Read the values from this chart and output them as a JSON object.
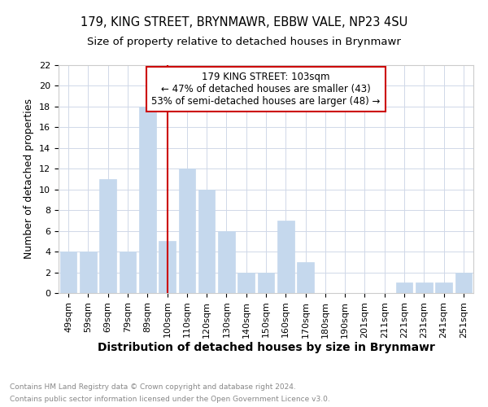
{
  "title_line1": "179, KING STREET, BRYNMAWR, EBBW VALE, NP23 4SU",
  "title_line2": "Size of property relative to detached houses in Brynmawr",
  "xlabel": "Distribution of detached houses by size in Brynmawr",
  "ylabel": "Number of detached properties",
  "bins": [
    "49sqm",
    "59sqm",
    "69sqm",
    "79sqm",
    "89sqm",
    "100sqm",
    "110sqm",
    "120sqm",
    "130sqm",
    "140sqm",
    "150sqm",
    "160sqm",
    "170sqm",
    "180sqm",
    "190sqm",
    "201sqm",
    "211sqm",
    "221sqm",
    "231sqm",
    "241sqm",
    "251sqm"
  ],
  "values": [
    4,
    4,
    11,
    4,
    18,
    5,
    12,
    10,
    6,
    2,
    2,
    7,
    3,
    0,
    0,
    0,
    0,
    1,
    1,
    1,
    2
  ],
  "bar_color": "#c5d8ed",
  "bar_edge_color": "#c5d8ed",
  "vline_x_index": 5,
  "vline_color": "#cc0000",
  "annotation_text": "179 KING STREET: 103sqm\n← 47% of detached houses are smaller (43)\n53% of semi-detached houses are larger (48) →",
  "annotation_box_color": "#ffffff",
  "annotation_box_edge_color": "#cc0000",
  "ylim": [
    0,
    22
  ],
  "grid_color": "#d0d8e8",
  "background_color": "#ffffff",
  "footer_line1": "Contains HM Land Registry data © Crown copyright and database right 2024.",
  "footer_line2": "Contains public sector information licensed under the Open Government Licence v3.0.",
  "title_fontsize": 10.5,
  "subtitle_fontsize": 9.5,
  "tick_fontsize": 8,
  "ylabel_fontsize": 9,
  "xlabel_fontsize": 10,
  "footer_fontsize": 6.5,
  "annotation_fontsize": 8.5
}
